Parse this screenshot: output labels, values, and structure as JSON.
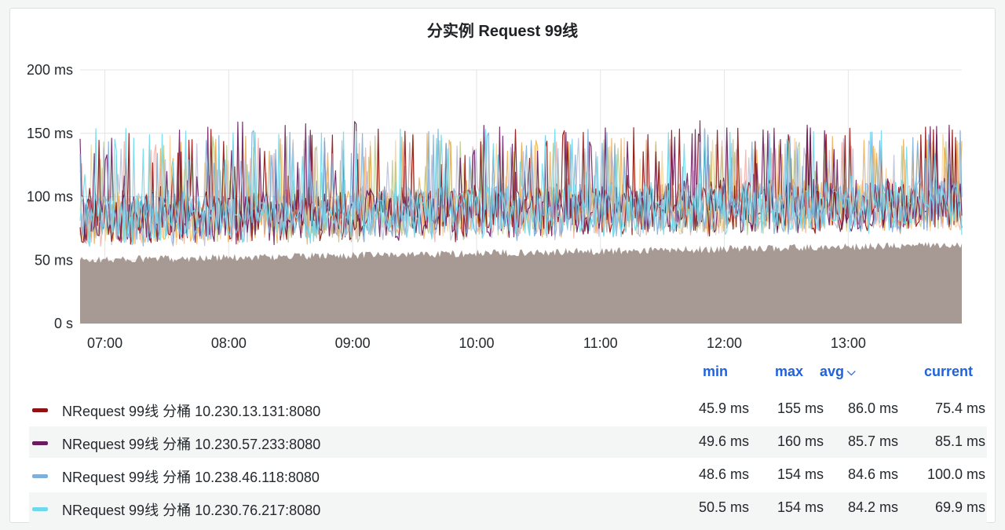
{
  "panel": {
    "title": "分实例 Request 99线"
  },
  "chart_data": {
    "type": "area",
    "title": "分实例 Request 99线",
    "xlabel": "",
    "ylabel": "",
    "x_range": [
      "06:48",
      "13:55"
    ],
    "x_ticks": [
      "07:00",
      "08:00",
      "09:00",
      "10:00",
      "11:00",
      "12:00",
      "13:00"
    ],
    "y_ticks": [
      "0 s",
      "50 ms",
      "100 ms",
      "150 ms",
      "200 ms"
    ],
    "ylim": [
      0,
      200
    ],
    "y_unit": "ms",
    "grid": true,
    "legend_position": "bottom",
    "stacked": false,
    "series": [
      {
        "name": "NRequest 99线 分桶 10.230.13.131:8080",
        "color": "#8f1212",
        "min": 45.9,
        "max": 155,
        "avg": 86.0,
        "current": 75.4
      },
      {
        "name": "NRequest 99线 分桶 10.230.57.233:8080",
        "color": "#6a1d5e",
        "min": 49.6,
        "max": 160,
        "avg": 85.7,
        "current": 85.1
      },
      {
        "name": "NRequest 99线 分桶 10.238.46.118:8080",
        "color": "#7eb0da",
        "min": 48.6,
        "max": 154,
        "avg": 84.6,
        "current": 100.0
      },
      {
        "name": "NRequest 99线 分桶 10.230.76.217:8080",
        "color": "#6ed9ec",
        "min": 50.5,
        "max": 154,
        "avg": 84.2,
        "current": 69.9
      }
    ],
    "other_series_colors": [
      "#f2a199",
      "#f5c98a",
      "#a9c27e",
      "#e8a23a",
      "#b0b0d0"
    ]
  },
  "legend": {
    "headers": {
      "min": "min",
      "max": "max",
      "avg": "avg",
      "current": "current"
    },
    "rows": [
      {
        "name": "NRequest 99线 分桶 10.230.13.131:8080",
        "min": "45.9 ms",
        "max": "155 ms",
        "avg": "86.0 ms",
        "current": "75.4 ms"
      },
      {
        "name": "NRequest 99线 分桶 10.230.57.233:8080",
        "min": "49.6 ms",
        "max": "160 ms",
        "avg": "85.7 ms",
        "current": "85.1 ms"
      },
      {
        "name": "NRequest 99线 分桶 10.238.46.118:8080",
        "min": "48.6 ms",
        "max": "154 ms",
        "avg": "84.6 ms",
        "current": "100.0 ms"
      },
      {
        "name": "NRequest 99线 分桶 10.230.76.217:8080",
        "min": "50.5 ms",
        "max": "154 ms",
        "avg": "84.2 ms",
        "current": "69.9 ms"
      }
    ]
  }
}
